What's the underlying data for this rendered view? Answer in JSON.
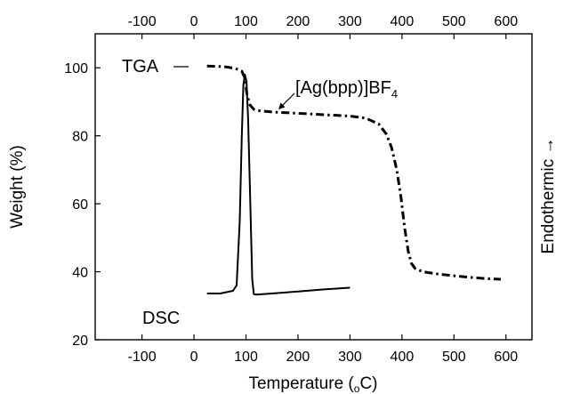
{
  "chart_data": {
    "type": "line",
    "xlabel": "Temperature (",
    "xlabel_degree": "o",
    "xlabel_unit": "C)",
    "ylabel": "Weight (%)",
    "right_label": "Endothermic →",
    "xlim": [
      -190,
      650
    ],
    "ylim": [
      20,
      110
    ],
    "xticks": [
      -100,
      0,
      100,
      200,
      300,
      400,
      500,
      600
    ],
    "yticks": [
      20,
      40,
      60,
      80,
      100
    ],
    "grid": false,
    "legend": "none",
    "series": [
      {
        "name": "TGA",
        "style": "dash-dot",
        "x": [
          25,
          60,
          80,
          92,
          98,
          102,
          108,
          115,
          125,
          150,
          200,
          250,
          300,
          330,
          355,
          370,
          380,
          390,
          398,
          405,
          412,
          418,
          425,
          440,
          470,
          520,
          560,
          590
        ],
        "y": [
          100.5,
          100.3,
          99.8,
          99.0,
          97.0,
          92.0,
          89.0,
          87.8,
          87.4,
          87.0,
          86.6,
          86.2,
          85.8,
          85.2,
          83.5,
          80.5,
          76.5,
          70.0,
          62.0,
          53.0,
          46.0,
          42.5,
          41.0,
          40.0,
          39.3,
          38.5,
          38.0,
          37.8
        ]
      },
      {
        "name": "DSC",
        "style": "solid",
        "x": [
          25,
          50,
          75,
          82,
          88,
          92,
          95,
          98,
          101,
          104,
          108,
          112,
          115,
          120,
          150,
          200,
          250,
          300
        ],
        "y": [
          33.6,
          33.6,
          34.4,
          36.0,
          55.0,
          80.0,
          95.0,
          98.0,
          96.0,
          85.0,
          62.0,
          38.0,
          33.4,
          33.3,
          33.6,
          34.2,
          34.8,
          35.3
        ]
      }
    ],
    "annotations": {
      "tga_label": "TGA",
      "dsc_label": "DSC",
      "compound_main": "[Ag(bpp)]BF",
      "compound_sub": "4"
    }
  }
}
